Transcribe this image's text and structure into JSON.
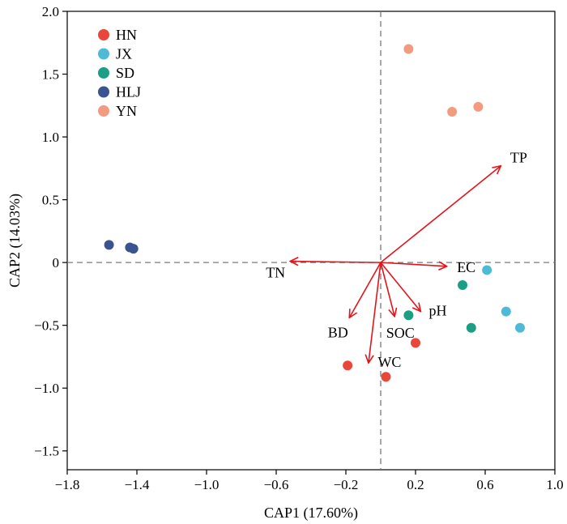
{
  "chart_data": {
    "type": "scatter",
    "title": "",
    "xlabel": "CAP1 (17.60%)",
    "ylabel": "CAP2 (14.03%)",
    "xlim": [
      -1.8,
      1.0
    ],
    "ylim": [
      -1.65,
      2.0
    ],
    "xticks": [
      -1.8,
      -1.4,
      -1.0,
      -0.6,
      -0.2,
      0.2,
      0.6,
      1.0
    ],
    "xtick_labels": [
      "−1.8",
      "−1.4",
      "−1.0",
      "−0.6",
      "−0.2",
      "0.2",
      "0.6",
      "1.0"
    ],
    "yticks": [
      2.0,
      1.5,
      1.0,
      0.5,
      0,
      -0.5,
      -1.0,
      -1.5
    ],
    "ytick_labels": [
      "2.0",
      "1.5",
      "1.0",
      "0.5",
      "0",
      "−0.5",
      "−1.0",
      "−1.5"
    ],
    "reference_lines": {
      "x": 0,
      "y": 0
    },
    "grid": false,
    "legend_position": "top-left",
    "series": [
      {
        "name": "HN",
        "color": "#E8473A",
        "points": [
          [
            -0.19,
            -0.82
          ],
          [
            0.03,
            -0.91
          ],
          [
            0.2,
            -0.64
          ]
        ]
      },
      {
        "name": "JX",
        "color": "#4DBBD5",
        "points": [
          [
            0.61,
            -0.06
          ],
          [
            0.72,
            -0.39
          ],
          [
            0.8,
            -0.52
          ]
        ]
      },
      {
        "name": "SD",
        "color": "#1A9E84",
        "points": [
          [
            0.16,
            -0.42
          ],
          [
            0.47,
            -0.18
          ],
          [
            0.52,
            -0.52
          ]
        ]
      },
      {
        "name": "HLJ",
        "color": "#3B5491",
        "points": [
          [
            -1.56,
            0.14
          ],
          [
            -1.44,
            0.12
          ],
          [
            -1.42,
            0.11
          ]
        ]
      },
      {
        "name": "YN",
        "color": "#F39B7F",
        "points": [
          [
            0.16,
            1.7
          ],
          [
            0.41,
            1.2
          ],
          [
            0.56,
            1.24
          ]
        ]
      }
    ],
    "vectors": {
      "color": "#E3141B",
      "items": [
        {
          "name": "TP",
          "x": 0.69,
          "y": 0.77
        },
        {
          "name": "EC",
          "x": 0.38,
          "y": -0.03
        },
        {
          "name": "TN",
          "x": -0.52,
          "y": 0.01
        },
        {
          "name": "BD",
          "x": -0.18,
          "y": -0.44
        },
        {
          "name": "WC",
          "x": -0.07,
          "y": -0.8
        },
        {
          "name": "SOC",
          "x": 0.08,
          "y": -0.43
        },
        {
          "name": "pH",
          "x": 0.23,
          "y": -0.39
        }
      ]
    }
  }
}
